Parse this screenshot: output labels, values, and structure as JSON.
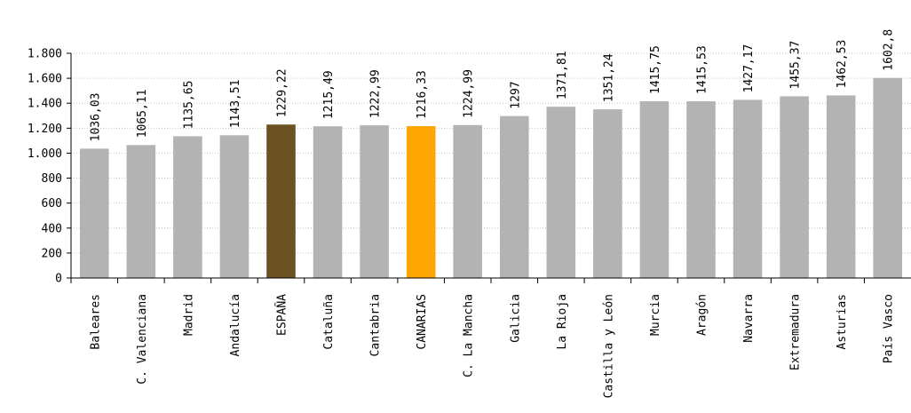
{
  "chart_data": {
    "type": "bar",
    "categories": [
      "Baleares",
      "C. Valenciana",
      "Madrid",
      "Andalucía",
      "ESPAÑA",
      "Cataluña",
      "Cantabria",
      "CANARIAS",
      "C. La Mancha",
      "Galicia",
      "La Rioja",
      "Castilla y León",
      "Murcia",
      "Aragón",
      "Navarra",
      "Extremadura",
      "Asturias",
      "País Vasco"
    ],
    "values": [
      1036.03,
      1065.11,
      1135.65,
      1143.51,
      1229.22,
      1215.49,
      1222.99,
      1216.33,
      1224.99,
      1297,
      1371.81,
      1351.24,
      1415.75,
      1415.53,
      1427.17,
      1455.37,
      1462.53,
      1602.8
    ],
    "value_labels": [
      "1036,03",
      "1065,11",
      "1135,65",
      "1143,51",
      "1229,22",
      "1215,49",
      "1222,99",
      "1216,33",
      "1224,99",
      "1297",
      "1371,81",
      "1351,24",
      "1415,75",
      "1415,53",
      "1427,17",
      "1455,37",
      "1462,53",
      "1602,8"
    ],
    "colors": [
      "#b3b3b3",
      "#b3b3b3",
      "#b3b3b3",
      "#b3b3b3",
      "#6b5220",
      "#b3b3b3",
      "#b3b3b3",
      "#ffa500",
      "#b3b3b3",
      "#b3b3b3",
      "#b3b3b3",
      "#b3b3b3",
      "#b3b3b3",
      "#b3b3b3",
      "#b3b3b3",
      "#b3b3b3",
      "#b3b3b3",
      "#b3b3b3"
    ],
    "y_ticks": [
      0,
      200,
      400,
      600,
      800,
      1000,
      1200,
      1400,
      1600,
      1800
    ],
    "y_tick_labels": [
      "0",
      "200",
      "400",
      "600",
      "800",
      "1.000",
      "1.200",
      "1.400",
      "1.600",
      "1.800"
    ],
    "ylim": [
      0,
      1800
    ],
    "grid": true,
    "title": "",
    "xlabel": "",
    "ylabel": ""
  }
}
